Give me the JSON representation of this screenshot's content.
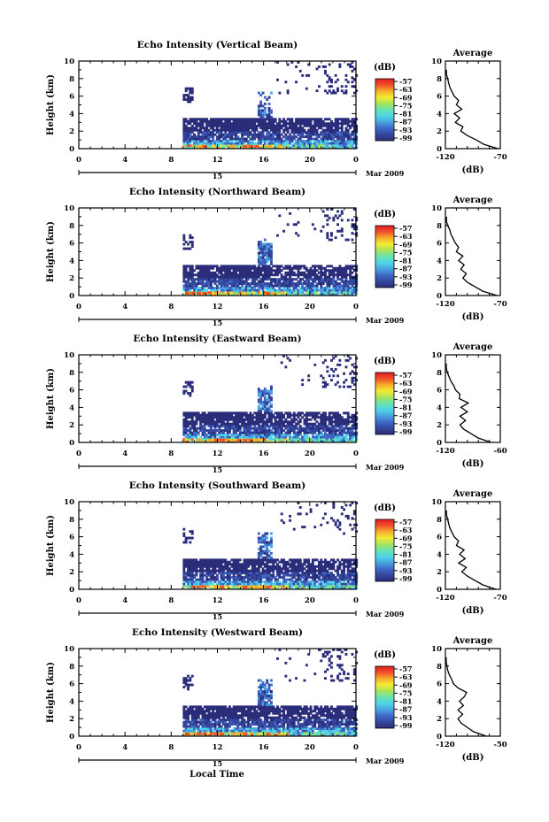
{
  "figure": {
    "xlabel": "Local Time",
    "date_label": "Mar 2009",
    "day_label": "15",
    "colorbar_unit": "(dB)",
    "colorbar_ticks": [
      "-57",
      "-63",
      "-69",
      "-75",
      "-81",
      "-87",
      "-93",
      "-99"
    ],
    "colors": {
      "colormap": [
        "#2b2d7a",
        "#34479c",
        "#3f68c7",
        "#4aa3e0",
        "#4fd4e8",
        "#67e3b0",
        "#a9e35a",
        "#f2ec33",
        "#f6ad2a",
        "#f2502a",
        "#e01e23"
      ]
    }
  },
  "chart_data": [
    {
      "type": "heatmap",
      "title": "Echo Intensity (Vertical Beam)",
      "xlabel": "",
      "ylabel": "Height (km)",
      "xlim": [
        0,
        24
      ],
      "ylim": [
        0,
        10
      ],
      "x_ticks": [
        "0",
        "4",
        "8",
        "12",
        "16",
        "20",
        "0"
      ],
      "y_ticks": [
        "0",
        "2",
        "4",
        "6",
        "8",
        "10"
      ],
      "colorbar": {
        "label": "(dB)",
        "range": [
          -99,
          -57
        ]
      },
      "profile": {
        "title": "Average",
        "xlabel": "(dB)",
        "x_ticks": [
          "-120",
          "-70"
        ],
        "xlim": [
          -120,
          -70
        ],
        "height": [
          0,
          0.5,
          1,
          1.5,
          2,
          2.5,
          3,
          3.5,
          4,
          4.5,
          5,
          5.5,
          6,
          6.5,
          7,
          7.5,
          8,
          8.5,
          9
        ],
        "value": [
          -72,
          -85,
          -92,
          -100,
          -106,
          -104,
          -111,
          -107,
          -112,
          -105,
          -110,
          -108,
          -112,
          -114,
          -116,
          -117,
          -118,
          -119,
          -119
        ]
      }
    },
    {
      "type": "heatmap",
      "title": "Echo Intensity (Northward Beam)",
      "xlabel": "",
      "ylabel": "Height (km)",
      "xlim": [
        0,
        24
      ],
      "ylim": [
        0,
        10
      ],
      "x_ticks": [
        "0",
        "4",
        "8",
        "12",
        "16",
        "20",
        "0"
      ],
      "y_ticks": [
        "0",
        "2",
        "4",
        "6",
        "8",
        "10"
      ],
      "colorbar": {
        "label": "(dB)",
        "range": [
          -99,
          -57
        ]
      },
      "profile": {
        "title": "Average",
        "xlabel": "(dB)",
        "x_ticks": [
          "-120",
          "-70"
        ],
        "xlim": [
          -120,
          -70
        ],
        "height": [
          0,
          0.5,
          1,
          1.5,
          2,
          2.5,
          3,
          3.5,
          4,
          4.5,
          5,
          5.5,
          6,
          6.5,
          7,
          7.5,
          8,
          8.5,
          9
        ],
        "value": [
          -73,
          -86,
          -93,
          -100,
          -104,
          -101,
          -106,
          -103,
          -108,
          -104,
          -110,
          -108,
          -111,
          -113,
          -115,
          -116,
          -118,
          -119,
          -119
        ]
      }
    },
    {
      "type": "heatmap",
      "title": "Echo Intensity (Eastward Beam)",
      "xlabel": "",
      "ylabel": "Height (km)",
      "xlim": [
        0,
        24
      ],
      "ylim": [
        0,
        10
      ],
      "x_ticks": [
        "0",
        "4",
        "8",
        "12",
        "16",
        "20",
        "0"
      ],
      "y_ticks": [
        "0",
        "2",
        "4",
        "6",
        "8",
        "10"
      ],
      "colorbar": {
        "label": "(dB)",
        "range": [
          -99,
          -57
        ]
      },
      "profile": {
        "title": "Average",
        "xlabel": "(dB)",
        "x_ticks": [
          "-120",
          "-60"
        ],
        "xlim": [
          -120,
          -60
        ],
        "height": [
          0,
          0.5,
          1,
          1.5,
          2,
          2.5,
          3,
          3.5,
          4,
          4.5,
          5,
          5.5,
          6,
          6.5,
          7,
          7.5,
          8,
          8.5,
          9
        ],
        "value": [
          -70,
          -84,
          -92,
          -100,
          -104,
          -98,
          -104,
          -96,
          -103,
          -95,
          -105,
          -104,
          -109,
          -111,
          -114,
          -116,
          -118,
          -119,
          -119
        ]
      }
    },
    {
      "type": "heatmap",
      "title": "Echo Intensity (Southward Beam)",
      "xlabel": "",
      "ylabel": "Height (km)",
      "xlim": [
        0,
        24
      ],
      "ylim": [
        0,
        10
      ],
      "x_ticks": [
        "0",
        "4",
        "8",
        "12",
        "16",
        "20",
        "0"
      ],
      "y_ticks": [
        "0",
        "2",
        "4",
        "6",
        "8",
        "10"
      ],
      "colorbar": {
        "label": "(dB)",
        "range": [
          -99,
          -57
        ]
      },
      "profile": {
        "title": "Average",
        "xlabel": "(dB)",
        "x_ticks": [
          "-120",
          "-70"
        ],
        "xlim": [
          -120,
          -70
        ],
        "height": [
          0,
          0.5,
          1,
          1.5,
          2,
          2.5,
          3,
          3.5,
          4,
          4.5,
          5,
          5.5,
          6,
          6.5,
          7,
          7.5,
          8,
          8.5,
          9
        ],
        "value": [
          -74,
          -86,
          -93,
          -100,
          -105,
          -101,
          -108,
          -102,
          -107,
          -103,
          -110,
          -108,
          -112,
          -114,
          -116,
          -117,
          -118,
          -119,
          -119
        ]
      }
    },
    {
      "type": "heatmap",
      "title": "Echo Intensity (Westward Beam)",
      "xlabel": "Local Time",
      "ylabel": "Height (km)",
      "xlim": [
        0,
        24
      ],
      "ylim": [
        0,
        10
      ],
      "x_ticks": [
        "0",
        "4",
        "8",
        "12",
        "16",
        "20",
        "0"
      ],
      "y_ticks": [
        "0",
        "2",
        "4",
        "6",
        "8",
        "10"
      ],
      "colorbar": {
        "label": "(dB)",
        "range": [
          -99,
          -57
        ]
      },
      "profile": {
        "title": "Average",
        "xlabel": "(dB)",
        "x_ticks": [
          "-120",
          "-50"
        ],
        "xlim": [
          -120,
          -50
        ],
        "height": [
          0,
          0.5,
          1,
          1.5,
          2,
          2.5,
          3,
          3.5,
          4,
          4.5,
          5,
          5.5,
          6,
          6.5,
          7,
          7.5,
          8,
          8.5,
          9
        ],
        "value": [
          -68,
          -84,
          -92,
          -100,
          -104,
          -98,
          -104,
          -97,
          -102,
          -96,
          -93,
          -104,
          -110,
          -112,
          -115,
          -117,
          -118,
          -119,
          -119
        ]
      }
    }
  ]
}
